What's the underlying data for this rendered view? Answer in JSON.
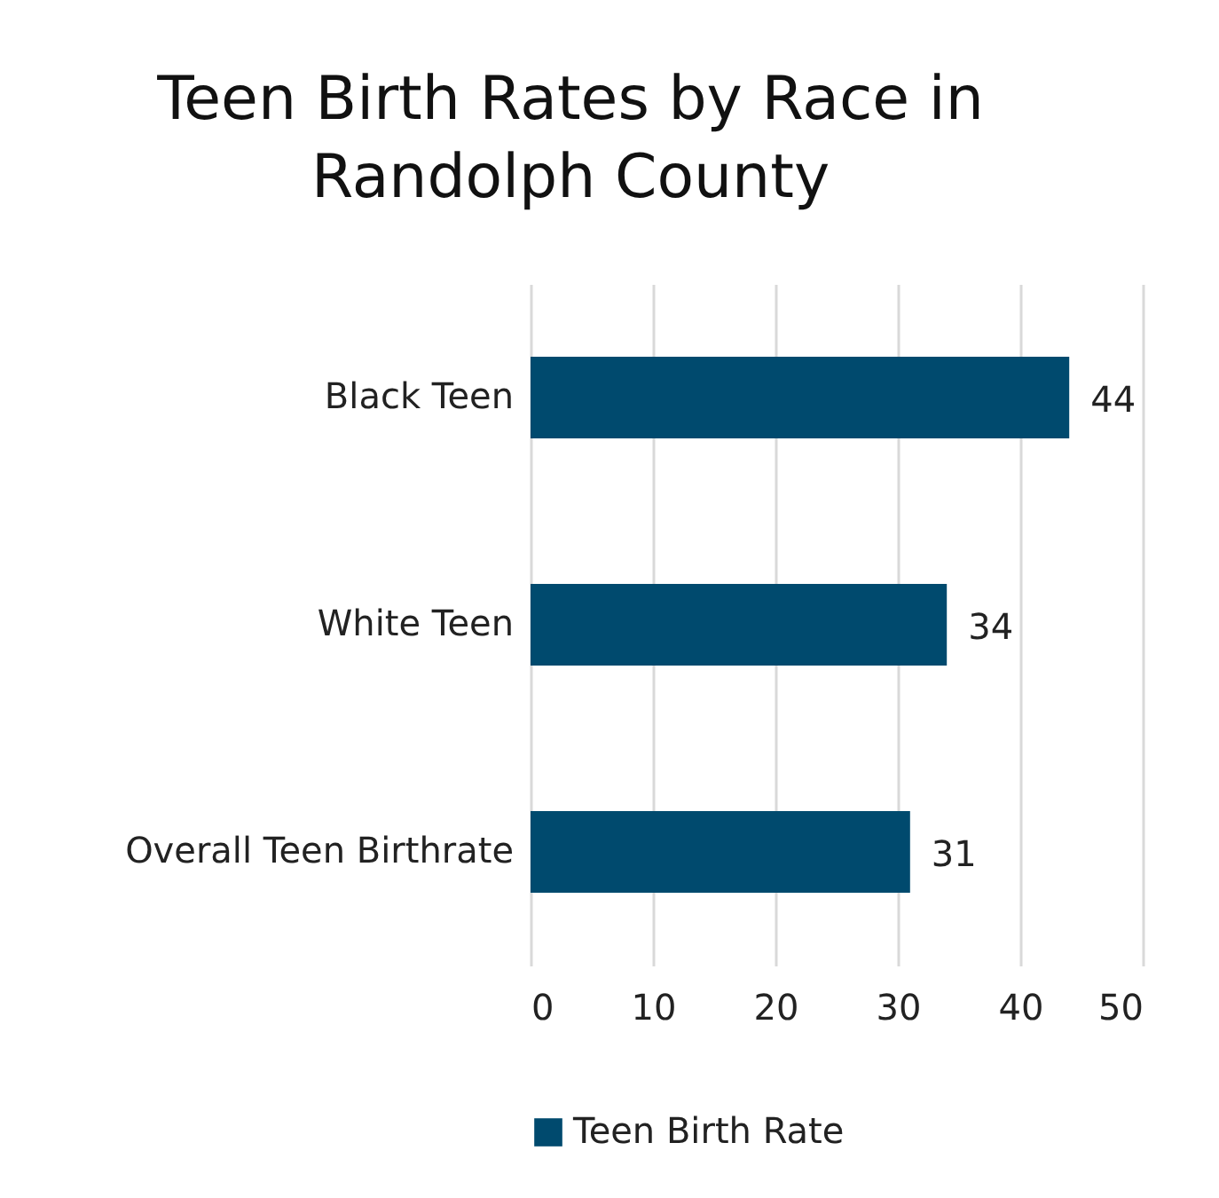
{
  "chart_data": {
    "type": "bar",
    "orientation": "horizontal",
    "title": "Teen Birth Rates by Race in Randolph County",
    "categories": [
      "Black Teen",
      "White Teen",
      "Overall Teen Birthrate"
    ],
    "series": [
      {
        "name": "Teen Birth Rate",
        "color": "#004a6e",
        "values": [
          44,
          34,
          31
        ]
      }
    ],
    "xlim": [
      0,
      50
    ],
    "xticks": [
      0,
      10,
      20,
      30,
      40,
      50
    ],
    "grid": "x",
    "legend": "bottom",
    "data_labels": true
  }
}
